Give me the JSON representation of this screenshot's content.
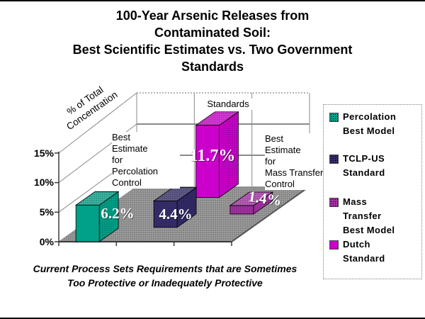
{
  "slide": {
    "title": "100-Year Arsenic Releases from\nContaminated Soil:\nBest Scientific Estimates vs. Two Government\nStandards",
    "caption": "Current Process Sets Requirements that are Sometimes\nToo Protective or Inadequately Protective"
  },
  "chart_data": {
    "type": "bar",
    "view": "3d-perspective",
    "yaxis": {
      "label": "% of Total\nConcentration",
      "ticks": [
        "0%",
        "5%",
        "10%",
        "15%"
      ],
      "range_pct": [
        0,
        15
      ],
      "grid": true
    },
    "categories": [
      "Best Estimate for Percolation Control",
      "Standards",
      "Best Estimate for Mass Transfer Control"
    ],
    "category_annotations": [
      {
        "text": "Best\nEstimate\nfor\nPercolation\nControl"
      },
      {
        "text": "Standards"
      },
      {
        "text": "Best\nEstimate\nfor\nMass Transfer\nControl"
      }
    ],
    "series": [
      {
        "name": "Percolation Best Model",
        "legend_label": "Percolation\nBest Model",
        "color": "#00A188",
        "pattern": true,
        "pattern_front": false,
        "values": [
          6.2,
          null,
          null
        ],
        "value": 6.2,
        "label": "6.2%"
      },
      {
        "name": "TCLP-US Standard",
        "legend_label": "TCLP-US\nStandard",
        "color": "#322B66",
        "pattern": true,
        "pattern_front": false,
        "values": [
          null,
          4.4,
          null
        ],
        "value": 4.4,
        "label": "4.4%"
      },
      {
        "name": "Mass Transfer Best Model",
        "legend_label": "Mass\nTransfer\nBest Model",
        "color": "#A531A5",
        "pattern": true,
        "pattern_front": true,
        "values": [
          null,
          null,
          1.4
        ],
        "value": 1.4,
        "label": "1.4%"
      },
      {
        "name": "Dutch Standard",
        "legend_label": "Dutch\nStandard",
        "color": "#CC00CC",
        "pattern": false,
        "pattern_front": false,
        "values": [
          null,
          11.7,
          null
        ],
        "value": 11.7,
        "label": "11.7%"
      }
    ],
    "colors": {
      "floor": "#9C9C9C",
      "gridline": "#8A8A8A",
      "axis": "#3A3A3A"
    },
    "legend_position": "right"
  }
}
